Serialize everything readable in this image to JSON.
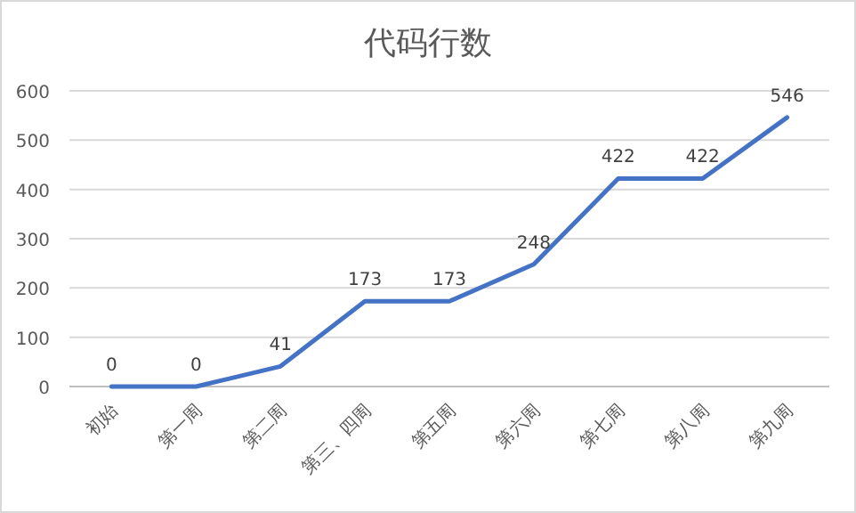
{
  "chart_data": {
    "type": "line",
    "title": "代码行数",
    "categories": [
      "初始",
      "第一周",
      "第二周",
      "第三、四周",
      "第五周",
      "第六周",
      "第七周",
      "第八周",
      "第九周"
    ],
    "series": [
      {
        "color": "#4472c4",
        "values": [
          0,
          0,
          41,
          173,
          173,
          248,
          422,
          422,
          546
        ]
      }
    ],
    "ylim": [
      0,
      600
    ],
    "yticks": [
      0,
      100,
      200,
      300,
      400,
      500,
      600
    ],
    "grid": "y",
    "data_labels": true
  }
}
